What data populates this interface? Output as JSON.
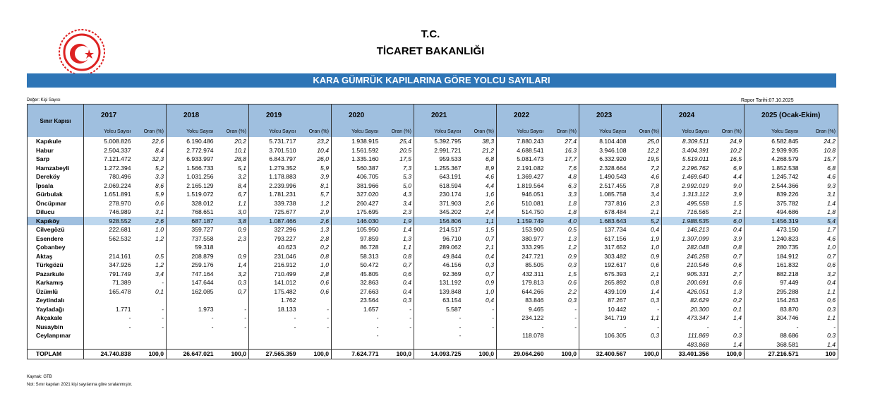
{
  "header": {
    "title_line1": "T.C.",
    "title_line2": "TİCARET BAKANLIĞI",
    "banner": "KARA GÜMRÜK KAPILARINA GÖRE YOLCU SAYILARI",
    "unit_note": "Değer: Kişi Sayısı",
    "report_date": "Rapor Tarihi:07.10.2025"
  },
  "table": {
    "corner": "Sınır Kapısı",
    "years": [
      "2017",
      "2018",
      "2019",
      "2020",
      "2021",
      "2022",
      "2023",
      "2024",
      "2025 (Ocak-Ekim)"
    ],
    "sub_count": "Yolcu Sayısı",
    "sub_ratio": "Oran (%)",
    "highlight_row": 9,
    "rows": [
      [
        "Kapıkule",
        "5.008.826",
        "22,6",
        "6.190.486",
        "20,2",
        "5.731.717",
        "23,2",
        "1.938.915",
        "25,4",
        "5.392.795",
        "38,3",
        "7.880.243",
        "27,4",
        "8.104.408",
        "25,0",
        "8.309.511",
        "24,9",
        "6.582.845",
        "24,2"
      ],
      [
        "Habur",
        "2.504.337",
        "8,4",
        "2.772.974",
        "10,1",
        "3.701.510",
        "10,4",
        "1.561.592",
        "20,5",
        "2.991.721",
        "21,2",
        "4.688.541",
        "16,3",
        "3.946.108",
        "12,2",
        "3.404.391",
        "10,2",
        "2.939.935",
        "10,8"
      ],
      [
        "Sarp",
        "7.121.472",
        "32,3",
        "6.933.997",
        "28,8",
        "6.843.797",
        "26,0",
        "1.335.160",
        "17,5",
        "959.533",
        "6,8",
        "5.081.473",
        "17,7",
        "6.332.920",
        "19,5",
        "5.519.011",
        "16,5",
        "4.268.579",
        "15,7"
      ],
      [
        "Hamzabeyli",
        "1.272.394",
        "5,2",
        "1.566.733",
        "5,1",
        "1.279.352",
        "5,9",
        "560.387",
        "7,3",
        "1.255.367",
        "8,9",
        "2.191.082",
        "7,6",
        "2.328.664",
        "7,2",
        "2.296.762",
        "6,9",
        "1.852.538",
        "6,8"
      ],
      [
        "Dereköy",
        "780.496",
        "3,3",
        "1.031.256",
        "3,2",
        "1.178.883",
        "3,9",
        "406.705",
        "5,3",
        "643.191",
        "4,6",
        "1.369.427",
        "4,8",
        "1.490.543",
        "4,6",
        "1.469.640",
        "4,4",
        "1.245.742",
        "4,6"
      ],
      [
        "İpsala",
        "2.069.224",
        "8,6",
        "2.165.129",
        "8,4",
        "2.239.996",
        "8,1",
        "381.966",
        "5,0",
        "618.594",
        "4,4",
        "1.819.564",
        "6,3",
        "2.517.455",
        "7,8",
        "2.992.019",
        "9,0",
        "2.544.366",
        "9,3"
      ],
      [
        "Gürbulak",
        "1.651.891",
        "5,9",
        "1.519.072",
        "6,7",
        "1.781.231",
        "5,7",
        "327.020",
        "4,3",
        "230.174",
        "1,6",
        "946.051",
        "3,3",
        "1.085.758",
        "3,4",
        "1.313.112",
        "3,9",
        "839.226",
        "3,1"
      ],
      [
        "Öncüpınar",
        "278.970",
        "0,6",
        "328.012",
        "1,1",
        "339.738",
        "1,2",
        "260.427",
        "3,4",
        "371.903",
        "2,6",
        "510.081",
        "1,8",
        "737.816",
        "2,3",
        "495.558",
        "1,5",
        "375.782",
        "1,4"
      ],
      [
        "Dilucu",
        "746.989",
        "3,1",
        "768.651",
        "3,0",
        "725.677",
        "2,9",
        "175.695",
        "2,3",
        "345.202",
        "2,4",
        "514.750",
        "1,8",
        "678.484",
        "2,1",
        "716.565",
        "2,1",
        "494.686",
        "1,8"
      ],
      [
        "Kapıköy",
        "928.552",
        "2,6",
        "687.187",
        "3,8",
        "1.087.466",
        "2,6",
        "146.030",
        "1,9",
        "156.806",
        "1,1",
        "1.159.749",
        "4,0",
        "1.683.643",
        "5,2",
        "1.988.535",
        "6,0",
        "1.456.319",
        "5,4"
      ],
      [
        "Cilvegözü",
        "222.681",
        "1,0",
        "359.727",
        "0,9",
        "327.296",
        "1,3",
        "105.950",
        "1,4",
        "214.517",
        "1,5",
        "153.900",
        "0,5",
        "137.734",
        "0,4",
        "146.213",
        "0,4",
        "473.150",
        "1,7"
      ],
      [
        "Esendere",
        "562.532",
        "1,2",
        "737.558",
        "2,3",
        "793.227",
        "2,8",
        "97.859",
        "1,3",
        "96.710",
        "0,7",
        "380.977",
        "1,3",
        "617.156",
        "1,9",
        "1.307.099",
        "3,9",
        "1.240.823",
        "4,6"
      ],
      [
        "Çobanbey",
        null,
        null,
        "59.318",
        null,
        "40.623",
        "0,2",
        "86.728",
        "1,1",
        "289.062",
        "2,1",
        "333.295",
        "1,2",
        "317.652",
        "1,0",
        "282.048",
        "0,8",
        "280.735",
        "1,0"
      ],
      [
        "Aktaş",
        "214.161",
        "0,5",
        "208.879",
        "0,9",
        "231.046",
        "0,8",
        "58.313",
        "0,8",
        "49.844",
        "0,4",
        "247.721",
        "0,9",
        "303.482",
        "0,9",
        "246.258",
        "0,7",
        "184.912",
        "0,7"
      ],
      [
        "Türkgözü",
        "347.926",
        "1,2",
        "259.176",
        "1,4",
        "216.912",
        "1,0",
        "50.472",
        "0,7",
        "46.156",
        "0,3",
        "85.505",
        "0,3",
        "192.617",
        "0,6",
        "210.546",
        "0,6",
        "161.832",
        "0,6"
      ],
      [
        "Pazarkule",
        "791.749",
        "3,4",
        "747.164",
        "3,2",
        "710.499",
        "2,8",
        "45.805",
        "0,6",
        "92.369",
        "0,7",
        "432.311",
        "1,5",
        "675.393",
        "2,1",
        "905.331",
        "2,7",
        "882.218",
        "3,2"
      ],
      [
        "Karkamış",
        "71.389",
        "-",
        "147.644",
        "0,3",
        "141.012",
        "0,6",
        "32.863",
        "0,4",
        "131.192",
        "0,9",
        "179.813",
        "0,6",
        "265.892",
        "0,8",
        "200.691",
        "0,6",
        "97.449",
        "0,4"
      ],
      [
        "Üzümlü",
        "165.478",
        "0,1",
        "162.085",
        "0,7",
        "175.482",
        "0,6",
        "27.663",
        "0,4",
        "139.848",
        "1,0",
        "644.266",
        "2,2",
        "439.109",
        "1,4",
        "426.051",
        "1,3",
        "295.288",
        "1,1"
      ],
      [
        "Zeytindalı",
        null,
        null,
        null,
        null,
        "1.762",
        null,
        "23.564",
        "0,3",
        "63.154",
        "0,4",
        "83.846",
        "0,3",
        "87.267",
        "0,3",
        "82.629",
        "0,2",
        "154.263",
        "0,6"
      ],
      [
        "Yayladağı",
        "1.771",
        "-",
        "1.973",
        "-",
        "18.133",
        "-",
        "1.657",
        "-",
        "5.587",
        "-",
        "9.465",
        "-",
        "10.442",
        "-",
        "20.300",
        "0,1",
        "83.870",
        "0,3"
      ],
      [
        "Akçakale",
        "-",
        "-",
        "-",
        "-",
        "-",
        "-",
        "-",
        "-",
        "-",
        "-",
        "234.122",
        "-",
        "341.719",
        "1,1",
        "473.347",
        "1,4",
        "304.746",
        "1,1"
      ],
      [
        "Nusaybin",
        "-",
        "-",
        "-",
        "-",
        "-",
        "-",
        "-",
        "-",
        "-",
        "-",
        "-",
        "-",
        "-",
        "-",
        "-",
        "-",
        "-",
        "-"
      ],
      [
        "Ceylanpınar",
        null,
        null,
        null,
        null,
        null,
        null,
        "-",
        null,
        "-",
        null,
        "118.078",
        null,
        "106.305",
        "0,3",
        "111.869",
        "0,3",
        "88.686",
        "0,3"
      ],
      [
        null,
        null,
        null,
        null,
        null,
        null,
        null,
        null,
        null,
        null,
        null,
        null,
        null,
        null,
        null,
        "483.868",
        "1,4",
        "368.581",
        "1,4"
      ]
    ],
    "total": [
      "TOPLAM",
      "24.740.838",
      "100,0",
      "26.647.021",
      "100,0",
      "27.565.359",
      "100,0",
      "7.624.771",
      "100,0",
      "14.093.725",
      "100,0",
      "29.064.260",
      "100,0",
      "32.400.567",
      "100,0",
      "33.401.356",
      "100,0",
      "27.216.571",
      "100"
    ]
  },
  "footer": {
    "source": "Kaynak: GTB",
    "note": "Not: Sınır kapıları 2021 kişi sayılarına göre sıralanmıştır."
  }
}
